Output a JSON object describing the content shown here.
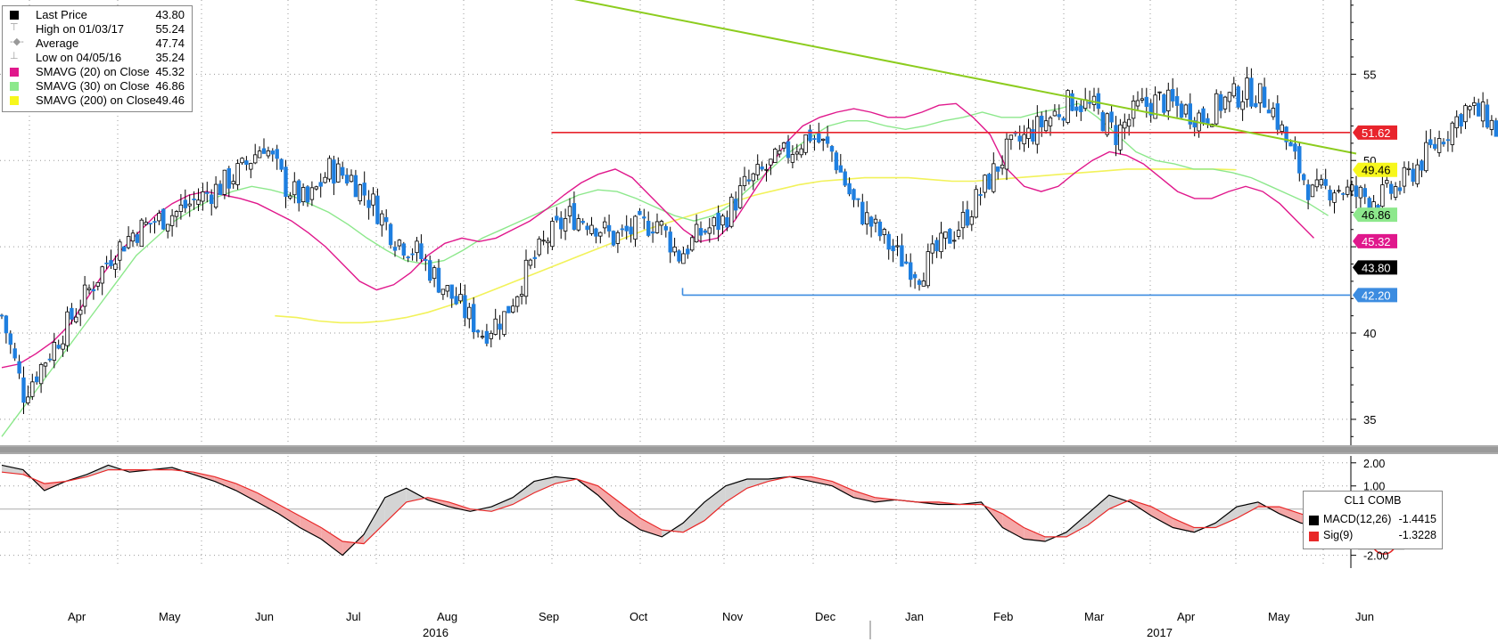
{
  "legend": {
    "items": [
      {
        "label": "Last Price",
        "value": "43.80"
      },
      {
        "label": "High on 01/03/17",
        "value": "55.24"
      },
      {
        "label": "Average",
        "value": "47.74"
      },
      {
        "label": "Low on 04/05/16",
        "value": "35.24"
      },
      {
        "label": "SMAVG (20) on Close",
        "value": "45.32"
      },
      {
        "label": "SMAVG (30) on Close",
        "value": "46.86"
      },
      {
        "label": "SMAVG (200) on Close",
        "value": "49.46"
      }
    ]
  },
  "macd_legend": {
    "title": "CL1 COMB",
    "items": [
      {
        "label": "MACD(12,26)",
        "value": "-1.4415"
      },
      {
        "label": "Sig(9)",
        "value": "-1.3228"
      }
    ]
  },
  "colors": {
    "up_candle": "#000000",
    "down_candle": "#1e7fe0",
    "sma20": "#e0188c",
    "sma30": "#8de88c",
    "sma200": "#f2f25a",
    "resistance": "#e8242c",
    "support": "#3c8ce0",
    "trendline": "#8ccc1e",
    "macd": "#000000",
    "signal": "#e82828",
    "last_price_tag": "#000000",
    "sma20_tag": "#e0188c",
    "sma30_tag": "#8de88c",
    "sma200_tag": "#f7f71c",
    "resistance_tag": "#e8242c",
    "support_tag": "#3c8ce0"
  },
  "chart_data": [
    {
      "type": "candlestick",
      "title": "",
      "y_ticks": [
        35,
        40,
        45,
        50,
        55
      ],
      "y_tick_labels": [
        "35",
        "40",
        "",
        "50",
        "55"
      ],
      "ylim": [
        33.5,
        59.3
      ],
      "x_month_labels": [
        "Apr",
        "May",
        "Jun",
        "Jul",
        "Aug",
        "Sep",
        "Oct",
        "Nov",
        "Dec",
        "Jan",
        "Feb",
        "Mar",
        "Apr",
        "May",
        "Jun"
      ],
      "x_year_labels": [
        {
          "label": "2016",
          "month_index": 4
        },
        {
          "label": "2017",
          "month_index": 12
        }
      ],
      "horizontal_lines": [
        {
          "name": "resistance",
          "y": 51.62,
          "label": "51.62",
          "from_week": 25
        },
        {
          "name": "support",
          "y": 42.2,
          "label": "42.20",
          "from_week": 31
        }
      ],
      "trendline": {
        "start_week": 26,
        "start_y": 59.4,
        "end_week": 62,
        "end_y": 50.4
      },
      "price_tags": [
        {
          "name": "resistance",
          "value": "51.62"
        },
        {
          "name": "sma200",
          "value": "49.46"
        },
        {
          "name": "sma30",
          "value": "46.86"
        },
        {
          "name": "sma20",
          "value": "45.32"
        },
        {
          "name": "last",
          "value": "43.80"
        },
        {
          "name": "support",
          "value": "42.20"
        }
      ],
      "weekly_close": [
        41.0,
        36.5,
        38.5,
        40.5,
        42.5,
        44.5,
        45.8,
        46.5,
        47.0,
        47.8,
        48.5,
        49.5,
        51.0,
        48.5,
        47.5,
        49.5,
        49.0,
        47.5,
        45.5,
        44.7,
        43.0,
        41.5,
        40.0,
        41.0,
        43.5,
        45.5,
        46.8,
        46.5,
        45.5,
        46.0,
        46.5,
        44.5,
        45.8,
        46.5,
        48.5,
        49.5,
        50.5,
        51.5,
        50.5,
        47.5,
        46.0,
        44.5,
        43.5,
        45.0,
        46.5,
        48.5,
        50.5,
        51.5,
        52.5,
        53.5,
        53.0,
        51.5,
        53.0,
        53.5,
        53.0,
        52.5,
        53.5,
        54.0,
        53.5,
        50.5,
        48.0,
        48.5,
        48.0,
        47.8,
        48.5,
        50.0,
        51.5,
        53.0,
        52.5,
        50.5,
        49.5,
        48.5,
        46.5,
        47.5,
        48.0,
        49.5,
        51.0,
        49.5,
        48.0,
        46.5,
        45.5,
        44.5,
        43.5,
        43.0,
        43.8
      ],
      "sma20": [
        38.0,
        38.2,
        38.8,
        39.5,
        40.5,
        42.0,
        43.5,
        44.8,
        45.8,
        46.8,
        47.5,
        48.0,
        48.2,
        48.0,
        47.8,
        47.5,
        47.0,
        46.5,
        45.8,
        45.0,
        44.0,
        43.0,
        42.5,
        42.8,
        43.5,
        44.5,
        45.2,
        45.5,
        45.3,
        45.5,
        46.0,
        46.5,
        47.2,
        48.0,
        48.7,
        49.2,
        49.5,
        49.0,
        48.0,
        47.0,
        46.0,
        45.3,
        45.5,
        46.5,
        48.0,
        49.5,
        51.0,
        52.0,
        52.5,
        52.8,
        53.0,
        52.8,
        52.5,
        52.5,
        52.8,
        53.2,
        53.3,
        52.5,
        51.5,
        49.5,
        48.5,
        48.2,
        48.5,
        49.3,
        50.0,
        50.5,
        50.3,
        49.8,
        49.0,
        48.2,
        47.8,
        47.8,
        48.2,
        48.5,
        48.2,
        47.5,
        46.5,
        45.5
      ],
      "sma30": [
        34.0,
        35.5,
        37.0,
        38.5,
        40.0,
        41.5,
        43.0,
        44.5,
        45.5,
        46.5,
        47.2,
        47.8,
        48.2,
        48.5,
        48.3,
        48.0,
        47.5,
        47.0,
        46.3,
        45.5,
        44.8,
        44.2,
        44.0,
        44.2,
        44.8,
        45.5,
        46.0,
        46.5,
        47.0,
        47.5,
        48.0,
        48.3,
        48.2,
        47.8,
        47.3,
        46.8,
        46.5,
        46.8,
        47.5,
        48.5,
        49.5,
        50.5,
        51.3,
        52.0,
        52.3,
        52.3,
        52.0,
        51.8,
        52.0,
        52.3,
        52.5,
        52.8,
        52.5,
        52.5,
        52.8,
        53.0,
        53.3,
        52.5,
        51.5,
        50.5,
        50.0,
        49.8,
        49.5,
        49.5,
        49.3,
        49.0,
        48.5,
        48.0,
        47.5,
        46.8
      ],
      "sma200": [
        41.0,
        40.9,
        40.7,
        40.6,
        40.6,
        40.7,
        40.9,
        41.2,
        41.6,
        42.0,
        42.5,
        43.0,
        43.5,
        44.0,
        44.5,
        45.0,
        45.5,
        46.0,
        46.4,
        46.8,
        47.2,
        47.6,
        48.0,
        48.3,
        48.6,
        48.8,
        48.9,
        49.0,
        49.0,
        49.0,
        48.9,
        48.8,
        48.8,
        48.9,
        49.0,
        49.1,
        49.2,
        49.3,
        49.4,
        49.5,
        49.5,
        49.5,
        49.5,
        49.5,
        49.46
      ],
      "high": {
        "label": "High on 01/03/17",
        "value": 55.24
      },
      "low": {
        "label": "Low on 04/05/16",
        "value": 35.24
      },
      "average": 47.74,
      "last": 43.8
    },
    {
      "type": "line",
      "title": "CL1 COMB",
      "y_ticks": [
        -2.0,
        -1.0,
        0.0,
        1.0,
        2.0
      ],
      "y_tick_labels": [
        "-2.00",
        "-1.00",
        "0.00",
        "1.00",
        "2.00"
      ],
      "ylim": [
        -2.4,
        2.3
      ],
      "series": [
        {
          "name": "MACD(12,26)",
          "values": [
            1.9,
            1.7,
            0.8,
            1.2,
            1.5,
            1.9,
            1.6,
            1.7,
            1.8,
            1.5,
            1.2,
            0.8,
            0.3,
            -0.2,
            -0.8,
            -1.3,
            -2.0,
            -1.1,
            0.5,
            0.9,
            0.4,
            0.1,
            -0.1,
            0.1,
            0.5,
            1.2,
            1.4,
            1.3,
            0.6,
            -0.3,
            -0.9,
            -1.2,
            -0.6,
            0.3,
            1.0,
            1.3,
            1.3,
            1.4,
            1.2,
            1.0,
            0.5,
            0.3,
            0.4,
            0.3,
            0.2,
            0.2,
            0.3,
            -0.8,
            -1.3,
            -1.4,
            -1.0,
            -0.2,
            0.6,
            0.3,
            -0.3,
            -0.8,
            -1.0,
            -0.6,
            0.1,
            0.3,
            -0.2,
            -0.6,
            -0.8,
            -1.2,
            -1.4,
            -1.4415
          ]
        },
        {
          "name": "Sig(9)",
          "values": [
            1.6,
            1.5,
            1.1,
            1.2,
            1.4,
            1.7,
            1.7,
            1.7,
            1.7,
            1.6,
            1.4,
            1.1,
            0.7,
            0.2,
            -0.3,
            -0.8,
            -1.4,
            -1.5,
            -0.6,
            0.3,
            0.5,
            0.3,
            0.0,
            -0.1,
            0.2,
            0.7,
            1.1,
            1.3,
            1.0,
            0.3,
            -0.4,
            -0.9,
            -1.0,
            -0.5,
            0.3,
            0.9,
            1.2,
            1.4,
            1.4,
            1.2,
            0.8,
            0.5,
            0.4,
            0.3,
            0.3,
            0.2,
            0.2,
            -0.2,
            -0.8,
            -1.2,
            -1.2,
            -0.7,
            0.0,
            0.4,
            0.1,
            -0.4,
            -0.8,
            -0.8,
            -0.4,
            0.1,
            0.1,
            -0.2,
            -0.5,
            -0.9,
            -1.2,
            -1.3228
          ]
        }
      ],
      "value_tag": "-1.4415"
    }
  ]
}
